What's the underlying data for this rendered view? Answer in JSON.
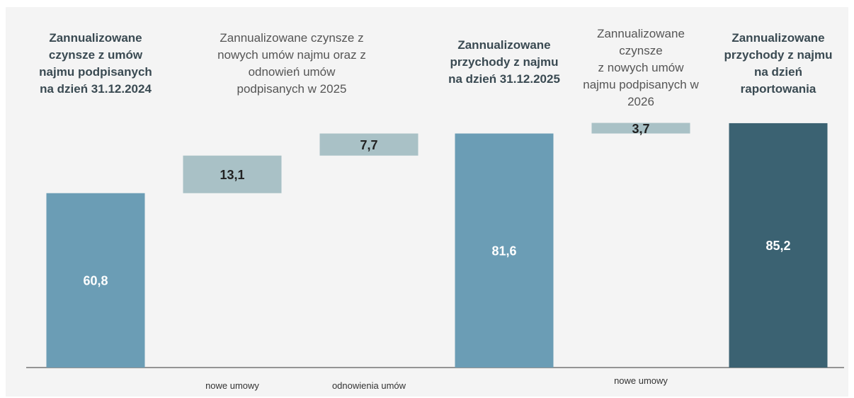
{
  "chart_data": {
    "type": "waterfall",
    "headers": [
      "Zannualizowane\nczynsze z umów\nnajmu podpisanych\nna dzień 31.12.2024",
      "Zannualizowane czynsze z\nnowych umów najmu oraz z\nodnowień umów\npodpisanych w 2025",
      "Zannualizowane\nprzychody z najmu\nna dzień 31.12.2025",
      "Zannualizowane\nczynsze\nz nowych umów\nnajmu podpisanych w\n2026",
      "Zannualizowane\nprzychody z najmu\nna dzień\nraportowania"
    ],
    "header_bold": [
      true,
      false,
      true,
      false,
      true
    ],
    "categories": [
      null,
      "nowe umowy",
      "odnowienia umów",
      null,
      "nowe umowy",
      null
    ],
    "measures": [
      "total",
      "relative",
      "relative",
      "total",
      "relative",
      "total"
    ],
    "values": [
      60.8,
      13.1,
      7.7,
      81.6,
      3.7,
      85.2
    ],
    "value_labels": [
      "60,8",
      "13,1",
      "7,7",
      "81,6",
      "3,7",
      "85,2"
    ],
    "colors": [
      "#6b9db5",
      "#a9c1c6",
      "#a9c1c6",
      "#6b9db5",
      "#a9c1c6",
      "#3b6272"
    ]
  }
}
